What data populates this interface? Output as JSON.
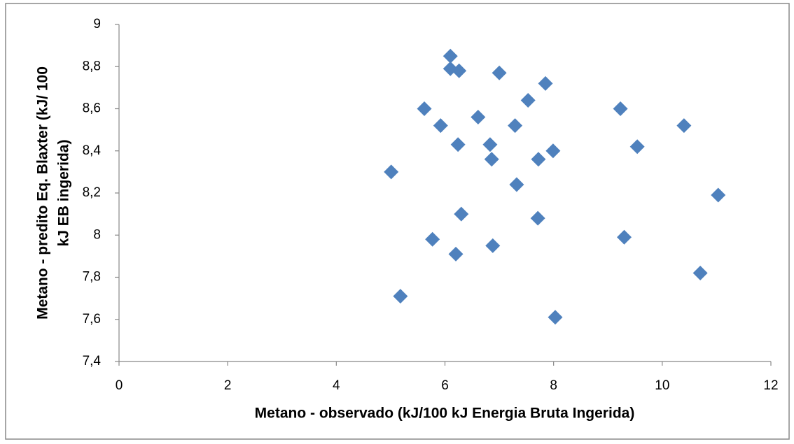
{
  "chart_data": {
    "type": "scatter",
    "x_label": "Metano - observado (kJ/100 kJ Energia Bruta Ingerida)",
    "y_label": [
      "Metano - predito Eq. Blaxter (kJ/ 100",
      "kJ EB ingerida)"
    ],
    "color": "#4f81bd",
    "xlim": [
      0,
      12
    ],
    "xticks": [
      0,
      2,
      4,
      6,
      8,
      10,
      12
    ],
    "ylim": [
      7.4,
      9
    ],
    "yticks": [
      {
        "value": 7.4,
        "label": "7,4"
      },
      {
        "value": 7.6,
        "label": "7,6"
      },
      {
        "value": 7.8,
        "label": "7,8"
      },
      8,
      {
        "value": 8.2,
        "label": "8,2"
      },
      {
        "value": 8.4,
        "label": "8,4"
      },
      {
        "value": 8.6,
        "label": "8,6"
      },
      {
        "value": 8.8,
        "label": "8,8"
      },
      9
    ],
    "grid": false,
    "x": [
      6.1,
      6.1,
      6.26,
      7.0,
      7.85,
      7.53,
      5.62,
      9.23,
      6.61,
      5.92,
      7.29,
      10.4,
      6.24,
      6.83,
      9.54,
      7.99,
      6.86,
      7.72,
      5.01,
      7.32,
      11.03,
      6.3,
      7.71,
      5.77,
      9.3,
      6.88,
      6.2,
      10.7,
      5.18,
      8.03
    ],
    "values": [
      8.85,
      8.79,
      8.78,
      8.77,
      8.72,
      8.64,
      8.6,
      8.6,
      8.56,
      8.52,
      8.52,
      8.52,
      8.43,
      8.43,
      8.42,
      8.4,
      8.36,
      8.36,
      8.3,
      8.24,
      8.19,
      8.1,
      8.08,
      7.98,
      7.99,
      7.95,
      7.91,
      7.82,
      7.71,
      7.61
    ]
  }
}
